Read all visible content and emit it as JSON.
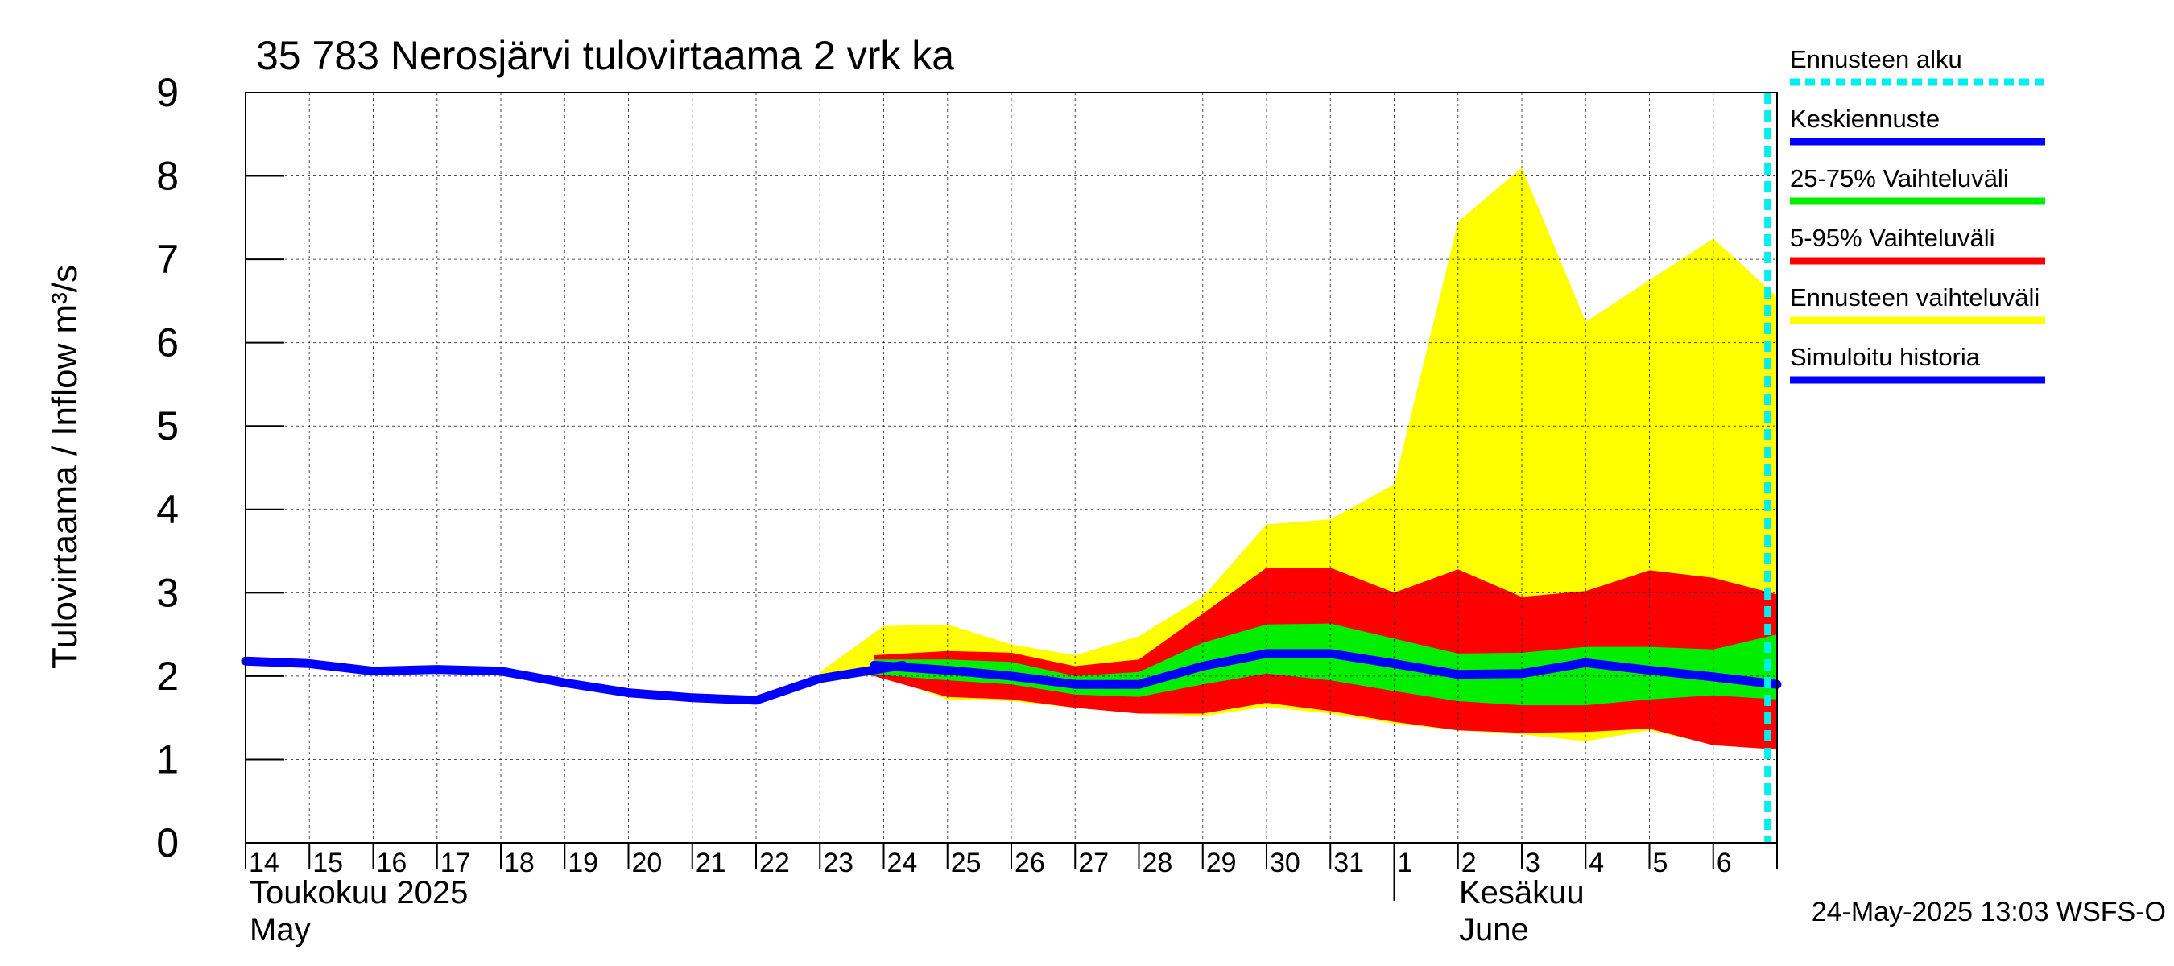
{
  "chart_data": {
    "type": "area",
    "title": "35 783 Nerosjärvi tulovirtaama 2 vrk ka",
    "ylabel": "Tulovirtaama / Inflow    m³/s",
    "ylim": [
      0,
      9
    ],
    "yticks": [
      0,
      1,
      2,
      3,
      4,
      5,
      6,
      7,
      8,
      9
    ],
    "x_days": [
      "14",
      "15",
      "16",
      "17",
      "18",
      "19",
      "20",
      "21",
      "22",
      "23",
      "24",
      "25",
      "26",
      "27",
      "28",
      "29",
      "30",
      "31",
      "1",
      "2",
      "3",
      "4",
      "5",
      "6"
    ],
    "month_labels": [
      {
        "fi": "Toukokuu  2025",
        "en": "May"
      },
      {
        "fi": "Kesäkuu",
        "en": "June"
      }
    ],
    "grid": true,
    "forecast_start_day": 23.85,
    "series": [
      {
        "name": "Simuloitu historia",
        "color": "#0000ff",
        "x": [
          0,
          1,
          2,
          3,
          4,
          5,
          6,
          7,
          8,
          9,
          10.3
        ],
        "values": [
          2.18,
          2.15,
          2.06,
          2.08,
          2.06,
          1.92,
          1.8,
          1.74,
          1.71,
          1.97,
          2.13
        ]
      },
      {
        "name": "Keskiennuste",
        "color": "#0000ff",
        "x": [
          9.85,
          11,
          12,
          13,
          14,
          15,
          16,
          17,
          18,
          19,
          20,
          21,
          22,
          23,
          24
        ],
        "values": [
          2.13,
          2.07,
          2.0,
          1.9,
          1.9,
          2.12,
          2.27,
          2.27,
          2.15,
          2.02,
          2.03,
          2.16,
          2.07,
          1.99,
          1.9
        ]
      },
      {
        "name": "Ennusteen vaihteluväli",
        "color": "#ffff00",
        "x": [
          9,
          10,
          11,
          12,
          13,
          14,
          15,
          16,
          17,
          18,
          19,
          20,
          21,
          22,
          23,
          24
        ],
        "upper": [
          2.05,
          2.6,
          2.62,
          2.38,
          2.25,
          2.48,
          2.95,
          3.82,
          3.88,
          4.3,
          7.45,
          8.1,
          6.25,
          6.75,
          7.25,
          6.55
        ],
        "lower": [
          2.0,
          2.0,
          1.72,
          1.7,
          1.62,
          1.55,
          1.52,
          1.63,
          1.55,
          1.43,
          1.35,
          1.3,
          1.22,
          1.35,
          1.18,
          1.13
        ]
      },
      {
        "name": "5-95% Vaihteluväli",
        "color": "#ff0000",
        "x": [
          9.85,
          11,
          12,
          13,
          14,
          15,
          16,
          17,
          18,
          19,
          20,
          21,
          22,
          23,
          24
        ],
        "upper": [
          2.25,
          2.3,
          2.28,
          2.12,
          2.2,
          2.75,
          3.3,
          3.3,
          3.0,
          3.28,
          2.95,
          3.02,
          3.27,
          3.18,
          2.98
        ],
        "lower": [
          2.0,
          1.75,
          1.72,
          1.62,
          1.55,
          1.55,
          1.68,
          1.58,
          1.45,
          1.35,
          1.32,
          1.33,
          1.37,
          1.17,
          1.12
        ]
      },
      {
        "name": "25-75% Vaihteluväli",
        "color": "#00ee00",
        "x": [
          9.85,
          11,
          12,
          13,
          14,
          15,
          16,
          17,
          18,
          19,
          20,
          21,
          22,
          23,
          24
        ],
        "upper": [
          2.2,
          2.2,
          2.17,
          2.0,
          2.05,
          2.4,
          2.62,
          2.63,
          2.45,
          2.27,
          2.28,
          2.35,
          2.35,
          2.32,
          2.5
        ],
        "lower": [
          2.02,
          1.95,
          1.9,
          1.78,
          1.75,
          1.9,
          2.03,
          1.95,
          1.82,
          1.7,
          1.65,
          1.65,
          1.72,
          1.77,
          1.72
        ]
      }
    ]
  },
  "legend": [
    {
      "label": "Ennusteen alku",
      "color": "#00eeee",
      "style": "dashed"
    },
    {
      "label": "Keskiennuste",
      "color": "#0000ff",
      "style": "solid"
    },
    {
      "label": "25-75% Vaihteluväli",
      "color": "#00ee00",
      "style": "solid"
    },
    {
      "label": "5-95% Vaihteluväli",
      "color": "#ff0000",
      "style": "solid"
    },
    {
      "label": "Ennusteen vaihteluväli",
      "color": "#ffff00",
      "style": "solid"
    },
    {
      "label": "Simuloitu historia",
      "color": "#0000ff",
      "style": "solid"
    }
  ],
  "footer_timestamp": "24-May-2025 13:03 WSFS-O"
}
